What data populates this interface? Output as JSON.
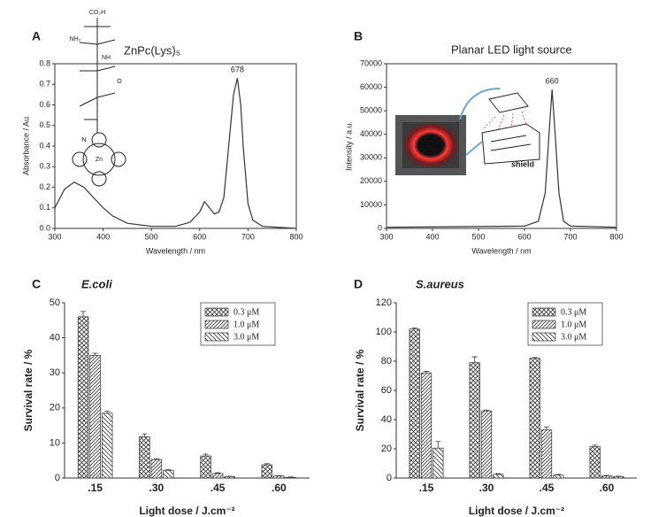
{
  "chart_data": [
    {
      "type": "line",
      "label": "A",
      "compound": "ZnPc(Lys)₅",
      "peak_label": "678",
      "structure_labels": [
        "CO₂H",
        "NH₂",
        "NH",
        "O",
        "N",
        "Zn"
      ],
      "x_label": "Wavelength / nm",
      "y_label": "Absorbance / Au",
      "color": "#333333",
      "x": [
        300,
        320,
        340,
        360,
        380,
        400,
        420,
        450,
        500,
        550,
        580,
        600,
        610,
        620,
        630,
        640,
        650,
        660,
        670,
        678,
        685,
        690,
        700,
        710,
        730,
        800
      ],
      "values": [
        0.1,
        0.19,
        0.225,
        0.2,
        0.15,
        0.1,
        0.06,
        0.025,
        0.01,
        0.01,
        0.03,
        0.08,
        0.13,
        0.1,
        0.07,
        0.08,
        0.15,
        0.4,
        0.65,
        0.73,
        0.6,
        0.4,
        0.12,
        0.04,
        0.01,
        0.0
      ],
      "xlim": [
        300,
        800
      ],
      "xticks": [
        300,
        400,
        500,
        600,
        700,
        800
      ],
      "ylim": [
        0,
        0.8
      ],
      "yticks": [
        {
          "value": 0,
          "label": "0.0"
        },
        0.1,
        0.2,
        0.3,
        0.4,
        0.5,
        0.6,
        0.7,
        0.8
      ]
    },
    {
      "type": "line",
      "label": "B",
      "title": "Planar LED light source",
      "peak_label": "660",
      "inset_label": "shield",
      "x_label": "Wavelength / nm",
      "y_label": "Intensity / a.u.",
      "color": "#333333",
      "x": [
        300,
        500,
        600,
        630,
        645,
        655,
        660,
        665,
        675,
        685,
        700,
        800
      ],
      "values": [
        500,
        800,
        1000,
        3000,
        15000,
        45000,
        59000,
        45000,
        15000,
        3000,
        1000,
        500
      ],
      "xlim": [
        300,
        800
      ],
      "xticks": [
        300,
        400,
        500,
        600,
        700,
        800
      ],
      "ylim": [
        0,
        70000
      ],
      "yticks": [
        0,
        10000,
        20000,
        30000,
        40000,
        50000,
        60000,
        70000
      ]
    },
    {
      "type": "bar",
      "label": "C",
      "title": "E.coli",
      "x_label": "Light dose / J.cm⁻²",
      "y_label": "Survival rate / %",
      "categories": [
        ".15",
        ".30",
        ".45",
        ".60"
      ],
      "series": [
        {
          "name": "0.3 μM",
          "pattern": "cross",
          "values": [
            46,
            11.8,
            6.3,
            3.8
          ],
          "errors": [
            1.5,
            0.8,
            0.5,
            0.3
          ]
        },
        {
          "name": "1.0 μM",
          "pattern": "fwd",
          "values": [
            35,
            5.3,
            1.3,
            0.6
          ],
          "errors": [
            0.6,
            0.2,
            0.2,
            0.1
          ]
        },
        {
          "name": "3.0 μM",
          "pattern": "back",
          "values": [
            18.5,
            2.2,
            0.4,
            0.2
          ],
          "errors": [
            0.6,
            0.2,
            0.1,
            0.1
          ]
        }
      ],
      "ylim": [
        0,
        50
      ],
      "yticks": [
        0,
        10,
        20,
        30,
        40,
        50
      ]
    },
    {
      "type": "bar",
      "label": "D",
      "title": "S.aureus",
      "x_label": "Light dose / J.cm⁻²",
      "y_label": "Survival rate / %",
      "categories": [
        ".15",
        ".30",
        ".45",
        ".60"
      ],
      "series": [
        {
          "name": "0.3 μM",
          "pattern": "cross",
          "values": [
            102,
            79,
            82,
            21.5
          ],
          "errors": [
            0.8,
            4,
            0.5,
            1
          ]
        },
        {
          "name": "1.0 μM",
          "pattern": "fwd",
          "values": [
            72,
            46,
            33,
            1.5
          ],
          "errors": [
            1,
            0.5,
            2,
            0.3
          ]
        },
        {
          "name": "3.0 μM",
          "pattern": "back",
          "values": [
            20.5,
            2.5,
            2,
            1
          ],
          "errors": [
            4.5,
            0.5,
            0.5,
            0.3
          ]
        }
      ],
      "ylim": [
        0,
        120
      ],
      "yticks": [
        0,
        20,
        40,
        60,
        80,
        100,
        120
      ]
    }
  ]
}
